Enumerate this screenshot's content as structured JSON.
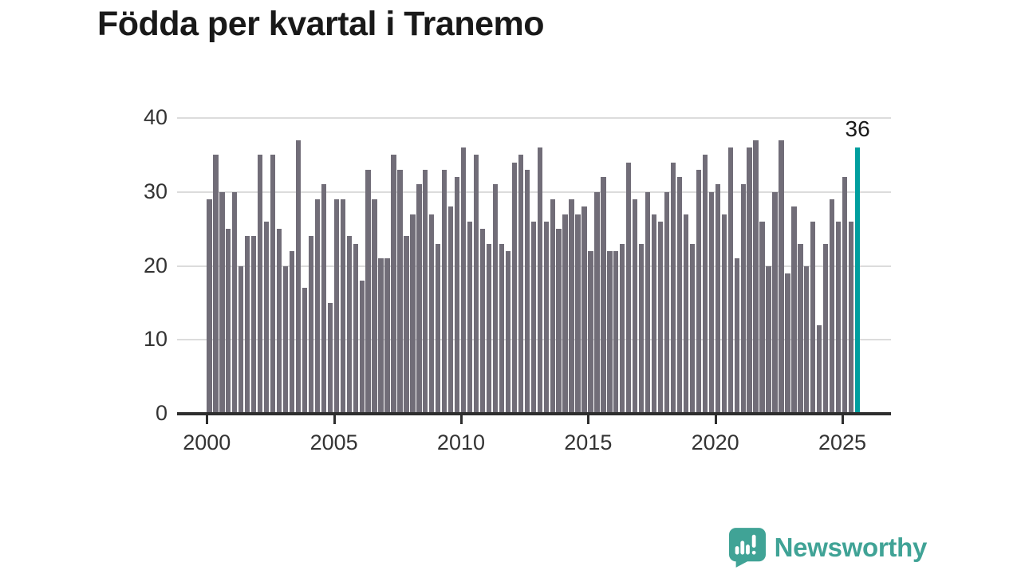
{
  "title": "Födda per kvartal i Tranemo",
  "annotation": {
    "label": "36"
  },
  "colors": {
    "bar": "#716d78",
    "highlight": "#009e9e",
    "grid": "#dcdcdc",
    "axis": "#2e2e2e",
    "title_text": "#191919",
    "tick_text": "#333333",
    "logo": "#40a396"
  },
  "logo": {
    "text": "Newsworthy"
  },
  "chart_data": {
    "type": "bar",
    "title": "Födda per kvartal i Tranemo",
    "description": "Births per quarter in Tranemo, quarterly bars 2000 Q1 to 2025 Q3",
    "start": "2000-Q1",
    "end": "2025-Q3",
    "values": [
      29,
      35,
      30,
      25,
      30,
      20,
      24,
      24,
      35,
      26,
      35,
      25,
      20,
      22,
      37,
      17,
      24,
      29,
      31,
      15,
      29,
      29,
      24,
      23,
      18,
      33,
      29,
      21,
      21,
      35,
      33,
      24,
      27,
      31,
      33,
      27,
      23,
      33,
      28,
      32,
      36,
      26,
      35,
      25,
      23,
      31,
      23,
      22,
      34,
      35,
      33,
      26,
      36,
      26,
      29,
      25,
      27,
      29,
      27,
      28,
      22,
      30,
      32,
      22,
      22,
      23,
      34,
      29,
      23,
      30,
      27,
      26,
      30,
      34,
      32,
      27,
      23,
      33,
      35,
      30,
      31,
      27,
      36,
      21,
      31,
      36,
      37,
      26,
      20,
      30,
      37,
      19,
      28,
      23,
      20,
      26,
      12,
      23,
      29,
      26,
      32,
      26,
      36
    ],
    "highlight_index": 102,
    "highlight_value": 36,
    "highlight_label": "36",
    "ylim": [
      0,
      40
    ],
    "yticks": [
      0,
      10,
      20,
      30,
      40
    ],
    "xticks": [
      2000,
      2005,
      2010,
      2015,
      2020,
      2025
    ],
    "grid": "horizontal",
    "legend": "none"
  }
}
